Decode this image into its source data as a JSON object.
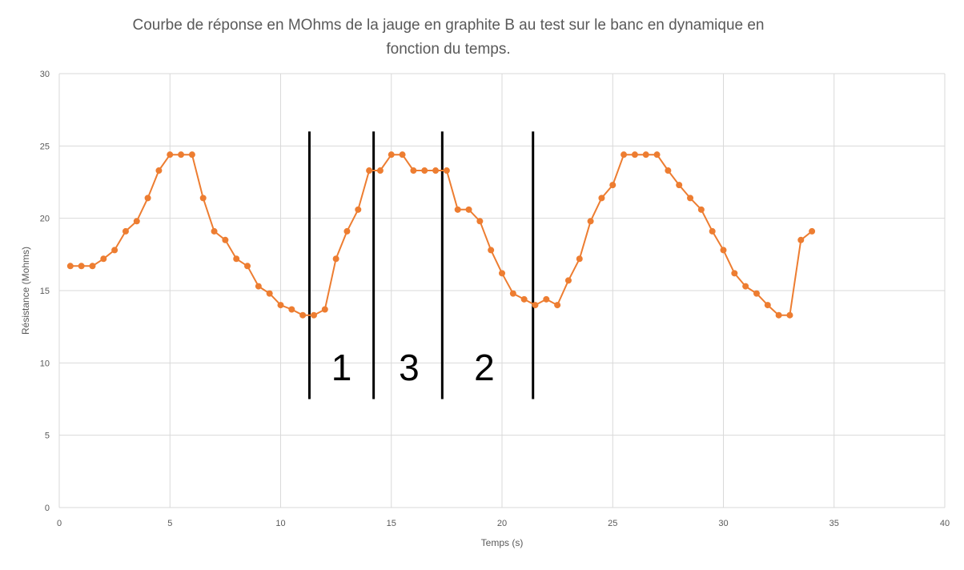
{
  "colors": {
    "series": "#ED7D31",
    "grid": "#D9D9D9",
    "axis_text": "#595959",
    "divider": "#000000"
  },
  "chart_data": {
    "type": "line",
    "title_lines": [
      "Courbe de réponse en MOhms de la jauge en graphite B au test sur le banc en dynamique en",
      "fonction du temps."
    ],
    "xlabel": "Temps (s)",
    "ylabel": "Résistance (Mohms)",
    "xlim": [
      0,
      40
    ],
    "ylim": [
      0,
      30
    ],
    "xticks": [
      0,
      5,
      10,
      15,
      20,
      25,
      30,
      35,
      40
    ],
    "yticks": [
      0,
      5,
      10,
      15,
      20,
      25,
      30
    ],
    "grid": true,
    "markers": true,
    "legend": "none",
    "series": [
      {
        "x": [
          0.5,
          1,
          1.5,
          2,
          2.5,
          3,
          3.5,
          4,
          4.5,
          5,
          5.5,
          6,
          6.5,
          7,
          7.5,
          8,
          8.5,
          9,
          9.5,
          10,
          10.5,
          11,
          11.5,
          12,
          12.5,
          13,
          13.5,
          14,
          14.5,
          15,
          15.5,
          16,
          16.5,
          17,
          17.5,
          18,
          18.5,
          19,
          19.5,
          20,
          20.5,
          21,
          21.5,
          22,
          22.5,
          23,
          23.5,
          24,
          24.5,
          25,
          25.5,
          26,
          26.5,
          27,
          27.5,
          28,
          28.5,
          29,
          29.5,
          30,
          30.5,
          31,
          31.5,
          32,
          32.5,
          33,
          33.5,
          34
        ],
        "y": [
          16.7,
          16.7,
          16.7,
          17.2,
          17.8,
          19.1,
          19.8,
          21.4,
          23.3,
          24.4,
          24.4,
          24.4,
          21.4,
          19.1,
          18.5,
          17.2,
          16.7,
          15.3,
          14.8,
          14.0,
          13.7,
          13.3,
          13.3,
          13.7,
          17.2,
          19.1,
          20.6,
          23.3,
          23.3,
          24.4,
          24.4,
          23.3,
          23.3,
          23.3,
          23.3,
          20.6,
          20.6,
          19.8,
          17.8,
          16.2,
          14.8,
          14.4,
          14.0,
          14.4,
          14.0,
          15.7,
          17.2,
          19.8,
          21.4,
          22.3,
          24.4,
          24.4,
          24.4,
          24.4,
          23.3,
          22.3,
          21.4,
          20.6,
          19.1,
          17.8,
          16.2,
          15.3,
          14.8,
          14.0,
          13.3,
          13.3,
          18.5,
          19.1
        ]
      }
    ],
    "annotations": {
      "vertical_lines": [
        {
          "x": 11.3,
          "y_from": 7.5,
          "y_to": 26
        },
        {
          "x": 14.2,
          "y_from": 7.5,
          "y_to": 26
        },
        {
          "x": 17.3,
          "y_from": 7.5,
          "y_to": 26
        },
        {
          "x": 21.4,
          "y_from": 7.5,
          "y_to": 26
        }
      ],
      "zone_labels": [
        {
          "text": "1",
          "x": 12.75,
          "y": 8.8
        },
        {
          "text": "3",
          "x": 15.8,
          "y": 8.8
        },
        {
          "text": "2",
          "x": 19.2,
          "y": 8.8
        }
      ]
    }
  }
}
